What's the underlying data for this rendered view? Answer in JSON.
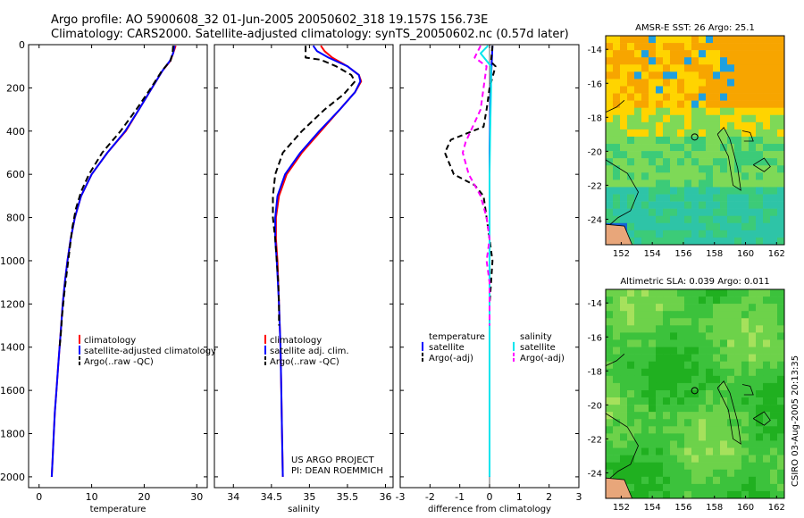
{
  "header": {
    "line1": "Argo profile: AO 5900608_32 01-Jun-2005 20050602_318 19.157S 156.73E",
    "line2": "Climatology: CARS2000. Satellite-adjusted climatology: synTS_20050602.nc (0.57d later)"
  },
  "credit": {
    "project": "US ARGO PROJECT",
    "pi": "PI: DEAN ROEMMICH",
    "stamp": "CSIRO 03-Aug-2005 20:13:35"
  },
  "colors": {
    "climatology": "#ff0000",
    "satellite": "#0000ff",
    "argo": "#000000",
    "salinity_satellite": "#00e5ee",
    "salinity_argo": "#ff00ff"
  },
  "chart_data": [
    {
      "type": "line",
      "id": "temperature",
      "xlabel": "temperature",
      "ylabel": "",
      "xlim": [
        -2,
        32
      ],
      "ylim": [
        2050,
        0
      ],
      "xticks": [
        0,
        10,
        20,
        30
      ],
      "xtick_labels": [
        "0",
        "10",
        "20",
        "30"
      ],
      "yticks": [
        0,
        200,
        400,
        600,
        800,
        1000,
        1200,
        1400,
        1600,
        1800,
        2000
      ],
      "ytick_labels": [
        "0",
        "200",
        "400",
        "600",
        "800",
        "1000",
        "1200",
        "1400",
        "1600",
        "1800",
        "2000"
      ],
      "legend": [
        "climatology",
        "satellite-adjusted climatology",
        "Argo(..raw -QC)"
      ],
      "series": [
        {
          "name": "climatology",
          "color": "#ff0000",
          "dash": "",
          "points": [
            [
              26.0,
              5
            ],
            [
              25.5,
              40
            ],
            [
              25.0,
              75
            ],
            [
              23.5,
              120
            ],
            [
              21.5,
              200
            ],
            [
              19.0,
              300
            ],
            [
              16.5,
              400
            ],
            [
              13.0,
              500
            ],
            [
              10.0,
              600
            ],
            [
              8.0,
              700
            ],
            [
              6.8,
              800
            ],
            [
              6.0,
              900
            ],
            [
              5.4,
              1000
            ],
            [
              4.9,
              1100
            ],
            [
              4.5,
              1200
            ],
            [
              4.2,
              1300
            ],
            [
              3.9,
              1400
            ],
            [
              3.6,
              1500
            ],
            [
              3.3,
              1600
            ],
            [
              3.0,
              1700
            ],
            [
              2.8,
              1800
            ],
            [
              2.6,
              1900
            ],
            [
              2.4,
              2000
            ]
          ]
        },
        {
          "name": "satellite-adjusted climatology",
          "color": "#0000ff",
          "dash": "",
          "points": [
            [
              25.8,
              5
            ],
            [
              25.5,
              40
            ],
            [
              24.9,
              75
            ],
            [
              23.5,
              120
            ],
            [
              21.5,
              200
            ],
            [
              19.0,
              300
            ],
            [
              16.4,
              400
            ],
            [
              13.0,
              500
            ],
            [
              10.0,
              600
            ],
            [
              8.0,
              700
            ],
            [
              6.8,
              800
            ],
            [
              6.0,
              900
            ],
            [
              5.4,
              1000
            ],
            [
              4.9,
              1100
            ],
            [
              4.5,
              1200
            ],
            [
              4.2,
              1300
            ],
            [
              3.9,
              1400
            ],
            [
              3.6,
              1500
            ],
            [
              3.3,
              1600
            ],
            [
              3.0,
              1700
            ],
            [
              2.8,
              1800
            ],
            [
              2.6,
              1900
            ],
            [
              2.4,
              2000
            ]
          ]
        },
        {
          "name": "Argo(..raw -QC)",
          "color": "#000000",
          "dash": "7,4",
          "points": [
            [
              25.5,
              5
            ],
            [
              25.4,
              40
            ],
            [
              25.0,
              75
            ],
            [
              23.4,
              120
            ],
            [
              21.3,
              200
            ],
            [
              18.5,
              300
            ],
            [
              15.5,
              400
            ],
            [
              12.0,
              500
            ],
            [
              9.5,
              600
            ],
            [
              8.0,
              680
            ],
            [
              7.0,
              760
            ],
            [
              6.3,
              850
            ],
            [
              5.8,
              950
            ],
            [
              5.3,
              1050
            ],
            [
              4.8,
              1150
            ],
            [
              4.4,
              1250
            ],
            [
              4.1,
              1350
            ],
            [
              3.9,
              1400
            ]
          ]
        }
      ]
    },
    {
      "type": "line",
      "id": "salinity",
      "xlabel": "salinity",
      "xlim": [
        33.75,
        36.1
      ],
      "ylim": [
        2050,
        0
      ],
      "xticks": [
        34,
        34.5,
        35,
        35.5,
        36
      ],
      "xtick_labels": [
        "34",
        "34.5",
        "35",
        "35.5",
        "36"
      ],
      "legend": [
        "climatology",
        "satellite adj. clim.",
        "Argo(..raw -QC)"
      ],
      "series": [
        {
          "name": "climatology",
          "color": "#ff0000",
          "dash": "",
          "points": [
            [
              35.15,
              5
            ],
            [
              35.2,
              30
            ],
            [
              35.3,
              60
            ],
            [
              35.5,
              100
            ],
            [
              35.65,
              140
            ],
            [
              35.68,
              170
            ],
            [
              35.6,
              220
            ],
            [
              35.4,
              300
            ],
            [
              35.15,
              400
            ],
            [
              34.9,
              500
            ],
            [
              34.7,
              600
            ],
            [
              34.6,
              700
            ],
            [
              34.56,
              800
            ],
            [
              34.56,
              900
            ],
            [
              34.58,
              1000
            ],
            [
              34.6,
              1200
            ],
            [
              34.62,
              1400
            ],
            [
              34.63,
              1600
            ],
            [
              34.64,
              1800
            ],
            [
              34.65,
              2000
            ]
          ]
        },
        {
          "name": "satellite adj. clim.",
          "color": "#0000ff",
          "dash": "",
          "points": [
            [
              35.05,
              5
            ],
            [
              35.1,
              30
            ],
            [
              35.25,
              60
            ],
            [
              35.5,
              100
            ],
            [
              35.65,
              140
            ],
            [
              35.67,
              170
            ],
            [
              35.6,
              220
            ],
            [
              35.4,
              300
            ],
            [
              35.13,
              400
            ],
            [
              34.88,
              500
            ],
            [
              34.68,
              600
            ],
            [
              34.58,
              700
            ],
            [
              34.55,
              800
            ],
            [
              34.55,
              900
            ],
            [
              34.57,
              1000
            ],
            [
              34.6,
              1200
            ],
            [
              34.62,
              1400
            ],
            [
              34.63,
              1600
            ],
            [
              34.64,
              1800
            ],
            [
              34.65,
              2000
            ]
          ]
        },
        {
          "name": "Argo(..raw -QC)",
          "color": "#000000",
          "dash": "7,4",
          "points": [
            [
              34.95,
              5
            ],
            [
              34.95,
              60
            ],
            [
              35.15,
              70
            ],
            [
              35.35,
              100
            ],
            [
              35.55,
              140
            ],
            [
              35.6,
              170
            ],
            [
              35.45,
              230
            ],
            [
              35.2,
              300
            ],
            [
              34.9,
              400
            ],
            [
              34.65,
              500
            ],
            [
              34.55,
              600
            ],
            [
              34.52,
              700
            ],
            [
              34.52,
              800
            ],
            [
              34.55,
              900
            ],
            [
              34.57,
              1000
            ],
            [
              34.59,
              1100
            ],
            [
              34.6,
              1200
            ],
            [
              34.6,
              1300
            ]
          ]
        }
      ]
    },
    {
      "type": "line",
      "id": "difference",
      "xlabel": "difference from climatology",
      "xlim": [
        -3,
        3
      ],
      "ylim": [
        2050,
        0
      ],
      "xticks": [
        -3,
        -2,
        -1,
        0,
        1,
        2,
        3
      ],
      "xtick_labels": [
        "-3",
        "-2",
        "-1",
        "0",
        "1",
        "2",
        "3"
      ],
      "legend_left_title": "temperature",
      "legend_left": [
        "satellite",
        "Argo(-adj)"
      ],
      "legend_right_title": "salinity",
      "legend_right": [
        "satellite",
        "Argo(-adj)"
      ],
      "series": [
        {
          "name": "temperature satellite",
          "color": "#0000ff",
          "dash": "",
          "points": [
            [
              0.1,
              5
            ],
            [
              0.08,
              60
            ],
            [
              0.05,
              150
            ],
            [
              0.02,
              300
            ],
            [
              0.0,
              500
            ],
            [
              0.0,
              2000
            ]
          ]
        },
        {
          "name": "temperature Argo(-adj)",
          "color": "#000000",
          "dash": "6,4",
          "points": [
            [
              0.1,
              5
            ],
            [
              0.05,
              80
            ],
            [
              0.2,
              100
            ],
            [
              0.0,
              200
            ],
            [
              -0.1,
              300
            ],
            [
              -0.2,
              380
            ],
            [
              -1.3,
              440
            ],
            [
              -1.5,
              500
            ],
            [
              -1.2,
              600
            ],
            [
              -0.5,
              650
            ],
            [
              -0.2,
              700
            ],
            [
              -0.1,
              800
            ],
            [
              0.0,
              900
            ],
            [
              0.1,
              1000
            ],
            [
              0.05,
              1100
            ],
            [
              0.0,
              1200
            ],
            [
              0.0,
              1400
            ]
          ]
        },
        {
          "name": "salinity satellite",
          "color": "#00e5ee",
          "dash": "",
          "points": [
            [
              -0.05,
              5
            ],
            [
              -0.3,
              40
            ],
            [
              0.05,
              100
            ],
            [
              0.05,
              200
            ],
            [
              0.02,
              400
            ],
            [
              0.0,
              600
            ],
            [
              0.0,
              2000
            ]
          ]
        },
        {
          "name": "salinity Argo(-adj)",
          "color": "#ff00ff",
          "dash": "6,4",
          "points": [
            [
              -0.3,
              5
            ],
            [
              -0.5,
              60
            ],
            [
              -0.1,
              100
            ],
            [
              -0.2,
              200
            ],
            [
              -0.3,
              300
            ],
            [
              -0.8,
              450
            ],
            [
              -0.9,
              500
            ],
            [
              -0.7,
              600
            ],
            [
              -0.3,
              700
            ],
            [
              -0.1,
              800
            ],
            [
              0.0,
              900
            ],
            [
              -0.1,
              1000
            ],
            [
              0.0,
              1100
            ],
            [
              0.0,
              1200
            ],
            [
              0.0,
              1300
            ]
          ]
        }
      ]
    },
    {
      "type": "heatmap",
      "id": "sst-map",
      "title": "AMSR-E SST: 26  Argo: 25.1",
      "xlim": [
        151,
        162.5
      ],
      "ylim": [
        -25.5,
        -13.2
      ],
      "xticks": [
        152,
        154,
        156,
        158,
        160,
        162
      ],
      "xtick_labels": [
        "152",
        "154",
        "156",
        "158",
        "160",
        "162"
      ],
      "yticks": [
        -14,
        -16,
        -18,
        -20,
        -22,
        -24
      ],
      "ytick_labels": [
        "-14",
        "-16",
        "-18",
        "-20",
        "-22",
        "-24"
      ],
      "colors": [
        "#f7a500",
        "#ffd400",
        "#7ed957",
        "#3ccb78",
        "#2ec4a7",
        "#1fa0e0",
        "#1464d8"
      ],
      "float_position": [
        156.73,
        -19.157
      ]
    },
    {
      "type": "heatmap",
      "id": "sla-map",
      "title": "Altimetric SLA: 0.039  Argo: 0.011",
      "xlim": [
        151,
        162.5
      ],
      "ylim": [
        -25.5,
        -13.2
      ],
      "xticks": [
        152,
        154,
        156,
        158,
        160,
        162
      ],
      "xtick_labels": [
        "152",
        "154",
        "156",
        "158",
        "160",
        "162"
      ],
      "yticks": [
        -14,
        -16,
        -18,
        -20,
        -22,
        -24
      ],
      "ytick_labels": [
        "-14",
        "-16",
        "-18",
        "-20",
        "-22",
        "-24"
      ],
      "colors": [
        "#20b020",
        "#3cc23c",
        "#6dd24a",
        "#a6e15c",
        "#d8ec68"
      ],
      "float_position": [
        156.73,
        -19.157
      ]
    }
  ]
}
